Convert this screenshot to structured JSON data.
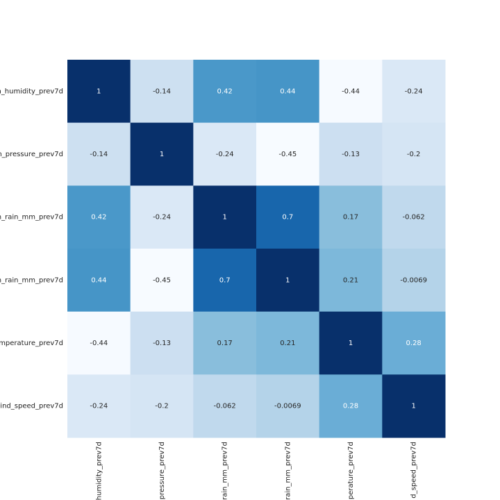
{
  "chart_data": {
    "type": "heatmap",
    "colormap": "Blues",
    "zlim": [
      -0.45,
      1
    ],
    "y_categories": [
      "n_humidity_prev7d",
      "n_pressure_prev7d",
      "n_rain_mm_prev7d",
      "n_rain_mm_prev7d",
      "mperature_prev7d",
      "ind_speed_prev7d"
    ],
    "x_categories": [
      "humidity_prev7d",
      "pressure_prev7d",
      "rain_mm_prev7d",
      "rain_mm_prev7d",
      "perature_prev7d",
      "d_speed_prev7d"
    ],
    "values": [
      [
        1,
        -0.14,
        0.42,
        0.44,
        -0.44,
        -0.24
      ],
      [
        -0.14,
        1,
        -0.24,
        -0.45,
        -0.13,
        -0.2
      ],
      [
        0.42,
        -0.24,
        1,
        0.7,
        0.17,
        -0.062
      ],
      [
        0.44,
        -0.45,
        0.7,
        1,
        0.21,
        -0.0069
      ],
      [
        -0.44,
        -0.13,
        0.17,
        0.21,
        1,
        0.28
      ],
      [
        -0.24,
        -0.2,
        -0.062,
        -0.0069,
        0.28,
        1
      ]
    ]
  }
}
